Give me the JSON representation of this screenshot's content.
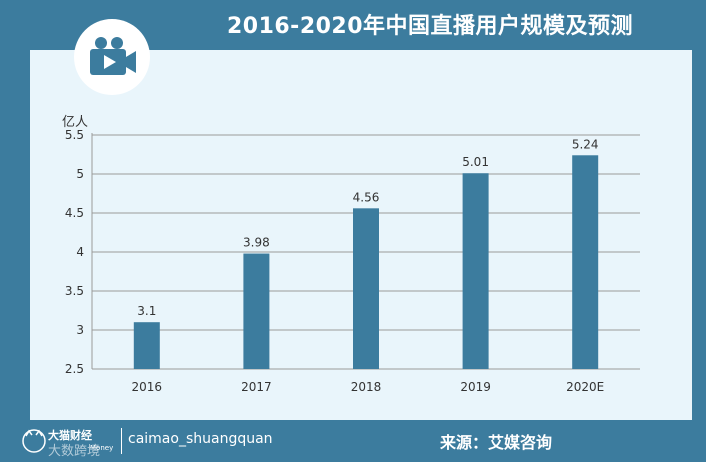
{
  "header": {
    "title": "2016-2020年中国直播用户规模及预测",
    "icon": "video-camera-icon"
  },
  "footer": {
    "brand_name": "大猫财经",
    "brand_sub": "Money",
    "watermark": "大数跨境",
    "account": "caimao_shuangquan",
    "source": "来源：艾媒咨询"
  },
  "colors": {
    "frame": "#3c7c9e",
    "panel": "#e9f5fb",
    "bar": "#3c7c9e"
  },
  "chart_data": {
    "type": "bar",
    "title": "2016-2020年中国直播用户规模及预测",
    "ylabel": "亿人",
    "xlabel": "",
    "categories": [
      "2016",
      "2017",
      "2018",
      "2019",
      "2020E"
    ],
    "values": [
      3.1,
      3.98,
      4.56,
      5.01,
      5.24
    ],
    "data_labels": [
      "3.1",
      "3.98",
      "4.56",
      "5.01",
      "5.24"
    ],
    "ylim": [
      2.5,
      5.5
    ],
    "yticks": [
      2.5,
      3,
      3.5,
      4,
      4.5,
      5,
      5.5
    ],
    "ytick_labels": [
      "2.5",
      "3",
      "3.5",
      "4",
      "4.5",
      "5",
      "5.5"
    ],
    "grid": true,
    "legend": "none"
  }
}
